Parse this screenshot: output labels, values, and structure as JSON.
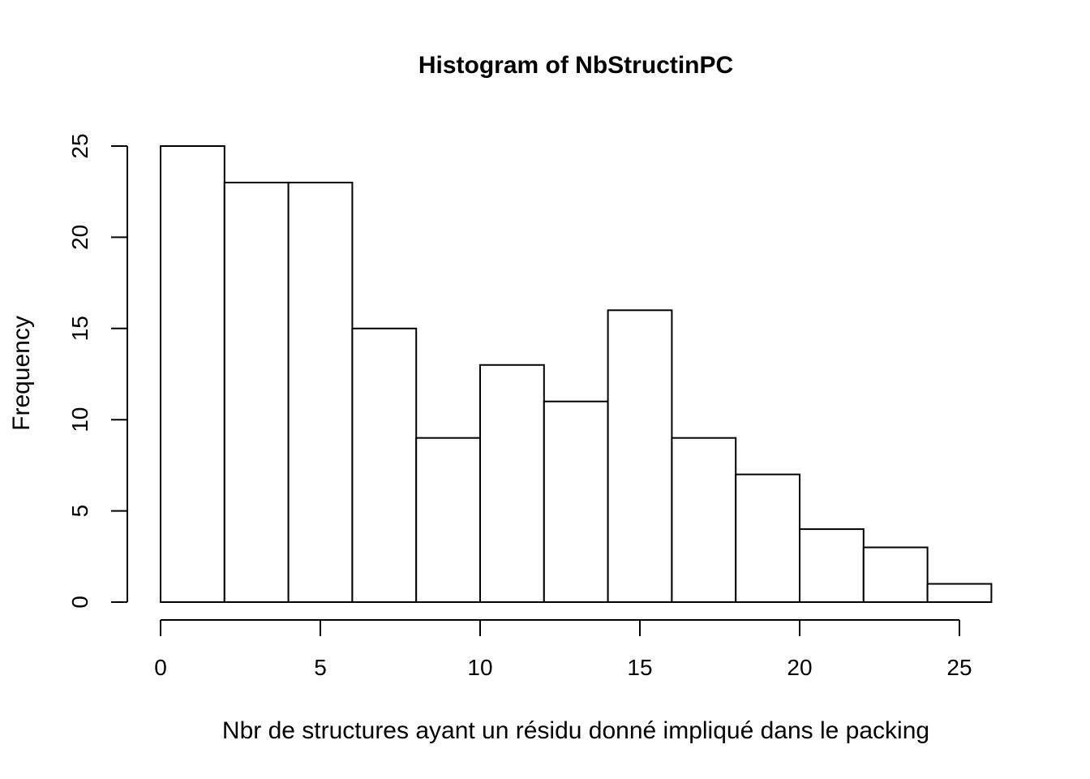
{
  "chart_data": {
    "type": "bar",
    "subtype": "histogram",
    "title": "Histogram of NbStructinPC",
    "xlabel": "Nbr de structures ayant un résidu donné impliqué dans le packing",
    "ylabel": "Frequency",
    "bins": [
      {
        "from": 0,
        "to": 2,
        "count": 25
      },
      {
        "from": 2,
        "to": 4,
        "count": 23
      },
      {
        "from": 4,
        "to": 6,
        "count": 23
      },
      {
        "from": 6,
        "to": 8,
        "count": 15
      },
      {
        "from": 8,
        "to": 10,
        "count": 9
      },
      {
        "from": 10,
        "to": 12,
        "count": 13
      },
      {
        "from": 12,
        "to": 14,
        "count": 11
      },
      {
        "from": 14,
        "to": 16,
        "count": 16
      },
      {
        "from": 16,
        "to": 18,
        "count": 9
      },
      {
        "from": 18,
        "to": 20,
        "count": 7
      },
      {
        "from": 20,
        "to": 22,
        "count": 4
      },
      {
        "from": 22,
        "to": 24,
        "count": 3
      },
      {
        "from": 24,
        "to": 26,
        "count": 1
      }
    ],
    "xlim": [
      0,
      26
    ],
    "ylim": [
      0,
      25
    ],
    "x_ticks": [
      0,
      5,
      10,
      15,
      20,
      25
    ],
    "y_ticks": [
      0,
      5,
      10,
      15,
      20,
      25
    ],
    "x_tick_labels": [
      "0",
      "5",
      "10",
      "15",
      "20",
      "25"
    ],
    "y_tick_labels": [
      "0",
      "5",
      "10",
      "15",
      "20",
      "25"
    ],
    "grid": false,
    "bar_fill": "#ffffff",
    "bar_stroke": "#000000"
  }
}
